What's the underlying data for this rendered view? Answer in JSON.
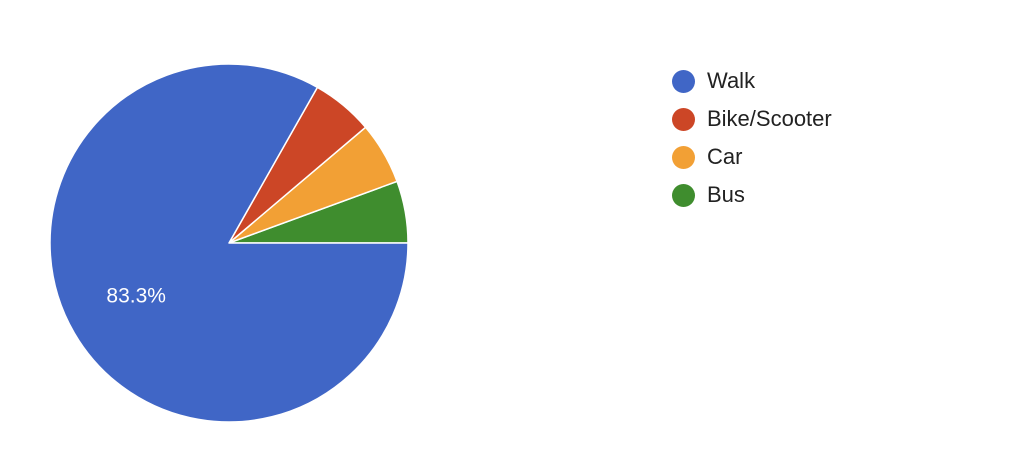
{
  "chart_data": {
    "type": "pie",
    "title": "",
    "legend_position": "right",
    "slices": [
      {
        "label": "Walk",
        "value": 83.3,
        "color": "#4066c6",
        "data_label": "83.3%"
      },
      {
        "label": "Bike/Scooter",
        "value": 5.6,
        "color": "#cc4626",
        "data_label": ""
      },
      {
        "label": "Car",
        "value": 5.6,
        "color": "#f2a035",
        "data_label": ""
      },
      {
        "label": "Bus",
        "value": 5.6,
        "color": "#3f8d2e",
        "data_label": ""
      }
    ]
  }
}
